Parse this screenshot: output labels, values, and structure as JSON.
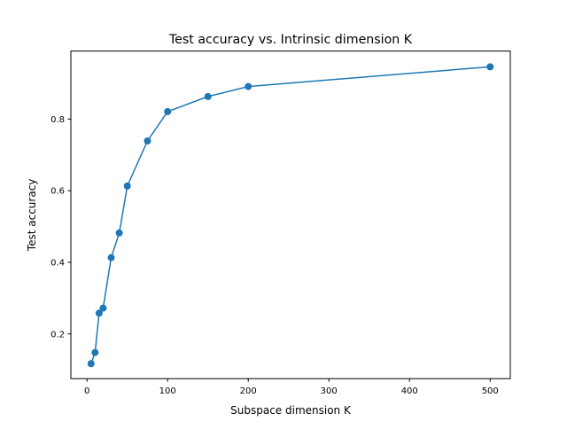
{
  "chart_data": {
    "type": "line",
    "title": "Test accuracy vs. Intrinsic dimension K",
    "xlabel": "Subspace dimension K",
    "ylabel": "Test accuracy",
    "xlim": [
      -20,
      525
    ],
    "ylim": [
      0.075,
      0.99
    ],
    "xticks": [
      0,
      100,
      200,
      300,
      400,
      500
    ],
    "xtick_labels": [
      "0",
      "100",
      "200",
      "300",
      "400",
      "500"
    ],
    "yticks": [
      0.2,
      0.4,
      0.6,
      0.8
    ],
    "ytick_labels": [
      "0.2",
      "0.4",
      "0.6",
      "0.8"
    ],
    "grid": false,
    "series": [
      {
        "color": "#1f77b4",
        "marker": "circle",
        "x": [
          5,
          10,
          15,
          20,
          30,
          40,
          50,
          75,
          100,
          150,
          200,
          500
        ],
        "y": [
          0.117,
          0.148,
          0.258,
          0.272,
          0.413,
          0.482,
          0.613,
          0.739,
          0.821,
          0.863,
          0.891,
          0.946
        ]
      }
    ]
  }
}
